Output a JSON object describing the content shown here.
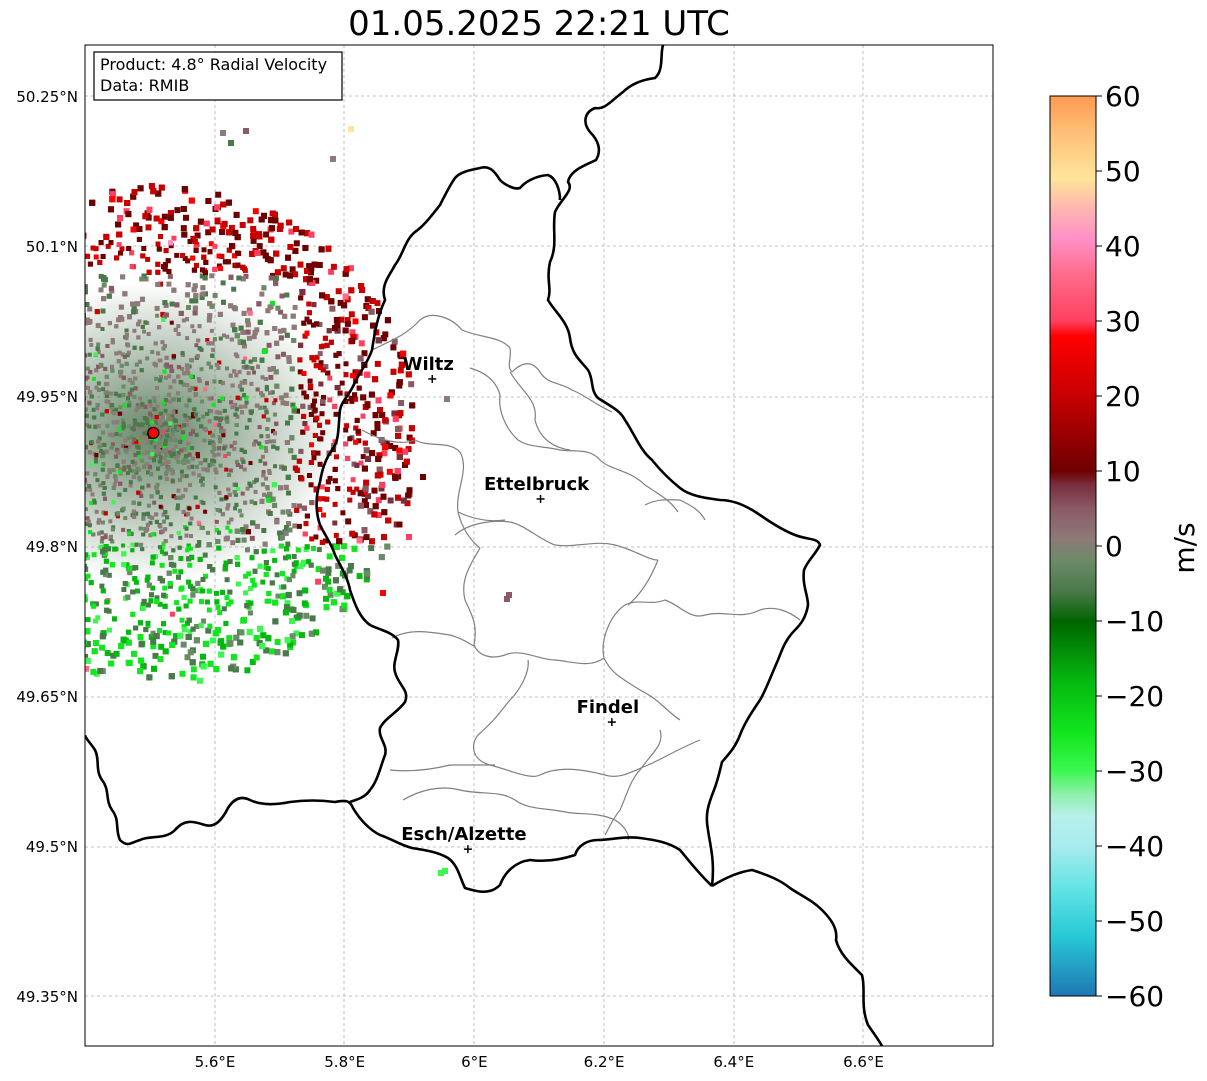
{
  "title": "01.05.2025 22:21 UTC",
  "info_box": {
    "product": "Product: 4.8° Radial Velocity",
    "data": "Data: RMIB"
  },
  "lon_ticks": [
    "5.6°E",
    "5.8°E",
    "6°E",
    "6.2°E",
    "6.4°E",
    "6.6°E"
  ],
  "lat_ticks": [
    "50.25°N",
    "50.1°N",
    "49.95°N",
    "49.8°N",
    "49.65°N",
    "49.5°N",
    "49.35°N"
  ],
  "cities": [
    {
      "name": "Wiltz",
      "lon": 5.935,
      "lat": 49.968
    },
    {
      "name": "Ettelbruck",
      "lon": 6.102,
      "lat": 49.848
    },
    {
      "name": "Findel",
      "lon": 6.212,
      "lat": 49.625
    },
    {
      "name": "Esch/Alzette",
      "lon": 5.99,
      "lat": 49.498
    }
  ],
  "radar_site": {
    "lon": 5.505,
    "lat": 49.914
  },
  "colorbar": {
    "label": "m/s",
    "ticks": [
      "60",
      "50",
      "40",
      "30",
      "20",
      "10",
      "0",
      "−10",
      "−20",
      "−30",
      "−40",
      "−50",
      "−60"
    ],
    "min": -60,
    "max": 60,
    "stops": [
      {
        "v": -60,
        "color": "#1f77b4"
      },
      {
        "v": -52,
        "color": "#27c9d6"
      },
      {
        "v": -46,
        "color": "#5fe2e3"
      },
      {
        "v": -40,
        "color": "#a8ecee"
      },
      {
        "v": -36,
        "color": "#b8f0ec"
      },
      {
        "v": -33,
        "color": "#8cf0a8"
      },
      {
        "v": -30,
        "color": "#3cf750"
      },
      {
        "v": -25,
        "color": "#12e61e"
      },
      {
        "v": -18,
        "color": "#05b80f"
      },
      {
        "v": -10,
        "color": "#006400"
      },
      {
        "v": -6,
        "color": "#4a7a4a"
      },
      {
        "v": -2,
        "color": "#6c8a68"
      },
      {
        "v": 1,
        "color": "#8e7a78"
      },
      {
        "v": 5,
        "color": "#8a5a64"
      },
      {
        "v": 8,
        "color": "#7a3040"
      },
      {
        "v": 10,
        "color": "#6e0000"
      },
      {
        "v": 20,
        "color": "#c80000"
      },
      {
        "v": 28,
        "color": "#ff0000"
      },
      {
        "v": 30,
        "color": "#ff4060"
      },
      {
        "v": 36,
        "color": "#ff6a88"
      },
      {
        "v": 41,
        "color": "#ff90c8"
      },
      {
        "v": 45,
        "color": "#ffb6b0"
      },
      {
        "v": 49,
        "color": "#ffe49a"
      },
      {
        "v": 55,
        "color": "#ffc078"
      },
      {
        "v": 60,
        "color": "#ff9a50"
      }
    ]
  }
}
